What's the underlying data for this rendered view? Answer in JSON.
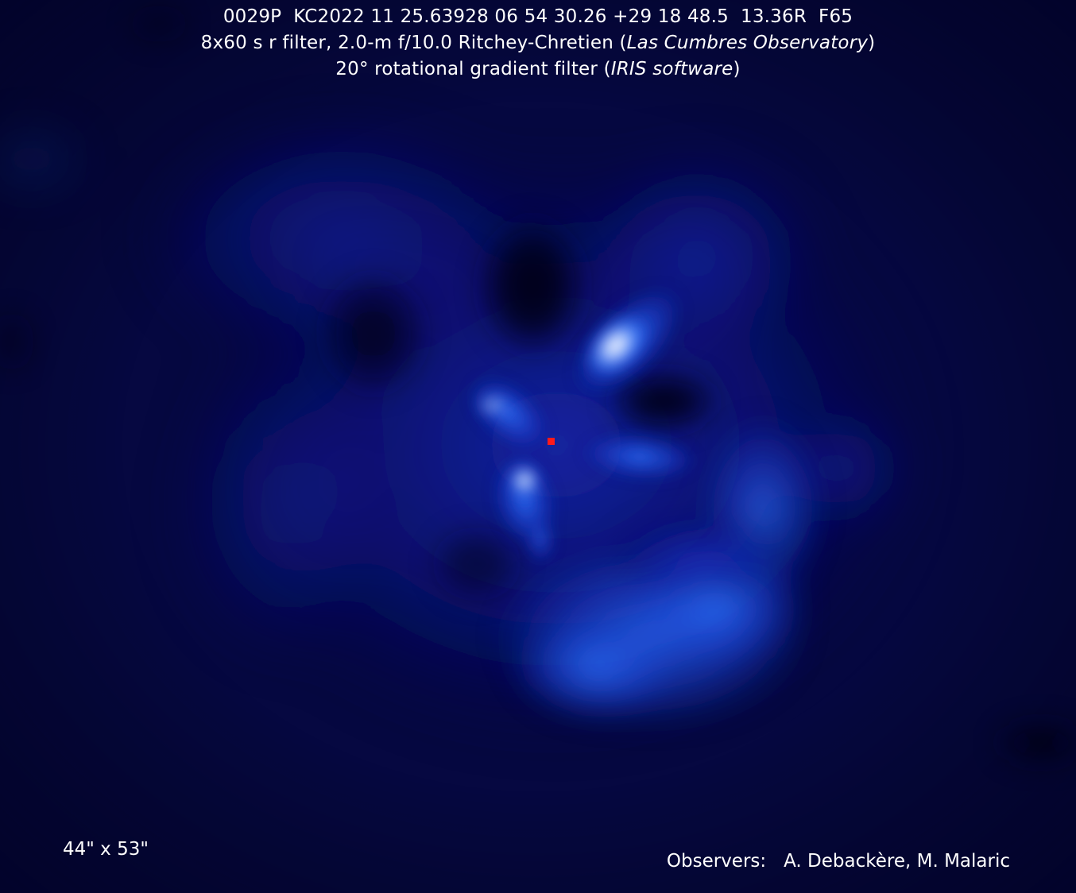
{
  "header": {
    "line1": "0029P  KC2022 11 25.63928 06 54 30.26 +29 18 48.5  13.36R  F65",
    "line2_prefix": "8x60 s r filter, 2.0-m f/10.0 Ritchey-Chretien (",
    "line2_italic": "Las Cumbres Observatory",
    "line2_suffix": ")",
    "line3_prefix": "20° rotational gradient filter (",
    "line3_italic": "IRIS software",
    "line3_suffix": ")"
  },
  "footer": {
    "field_of_view": "44\" x 53\"",
    "observers_label": "Observers:",
    "observers_names": "A. Debackère, M. Malaric"
  },
  "colors": {
    "background": "#050640",
    "text": "#ffffff",
    "nucleus_marker": "#ff1a1a",
    "glow": "#2f74ff",
    "highlight": "#dfe9ff"
  }
}
